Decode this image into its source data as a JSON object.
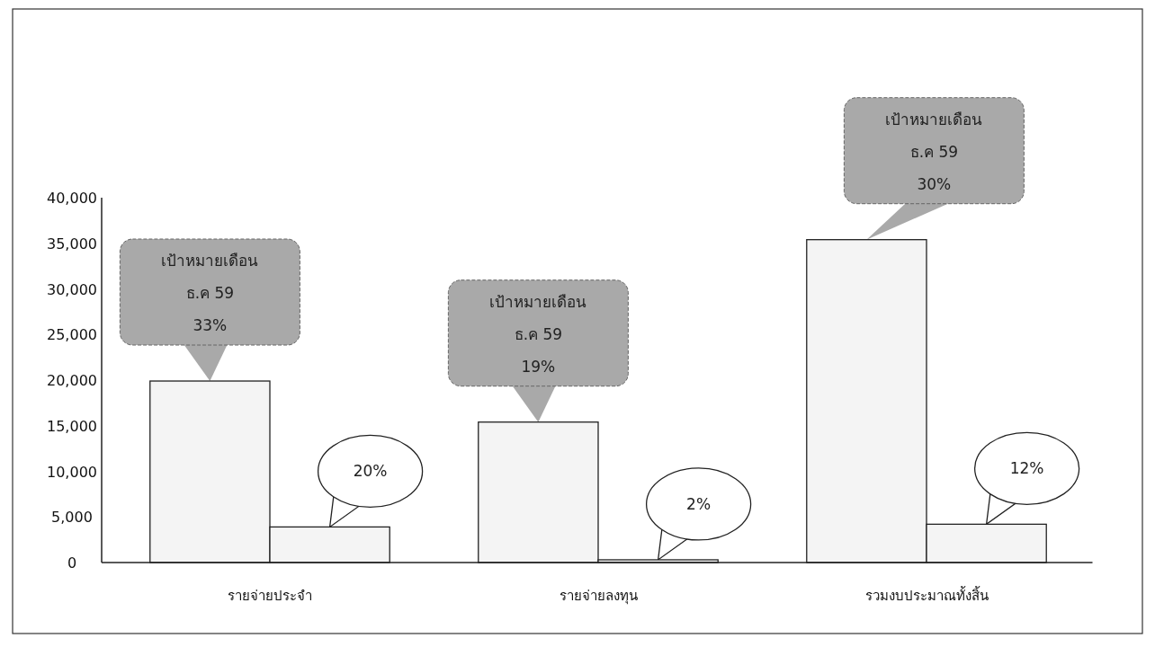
{
  "chart_data": {
    "type": "bar",
    "categories": [
      "รายจ่ายประจำ",
      "รายจ่ายลงทุน",
      "รวมงบประมาณทั้งสิ้น"
    ],
    "series": [
      {
        "color": "#f4f4f4",
        "values": [
          19900,
          15400,
          35400
        ]
      },
      {
        "color": "#f4f4f4",
        "values": [
          3900,
          300,
          4200
        ]
      }
    ],
    "ylim": [
      0,
      40000
    ],
    "yticks": [
      0,
      {
        "value": 5000,
        "label": "5,000"
      },
      {
        "value": 10000,
        "label": "10,000"
      },
      {
        "value": 15000,
        "label": "15,000"
      },
      {
        "value": 20000,
        "label": "20,000"
      },
      {
        "value": 25000,
        "label": "25,000"
      },
      {
        "value": 30000,
        "label": "30,000"
      },
      {
        "value": 35000,
        "label": "35,000"
      },
      {
        "value": 40000,
        "label": "40,000"
      }
    ],
    "grid": false,
    "annotations": [
      "เป้าหมายเดือน\nธ.ค 59\n33%",
      "เป้าหมายเดือน\nธ.ค 59\n19%",
      "เป้าหมายเดือน\nธ.ค 59\n30%",
      "20%",
      "2%",
      "12%"
    ]
  }
}
